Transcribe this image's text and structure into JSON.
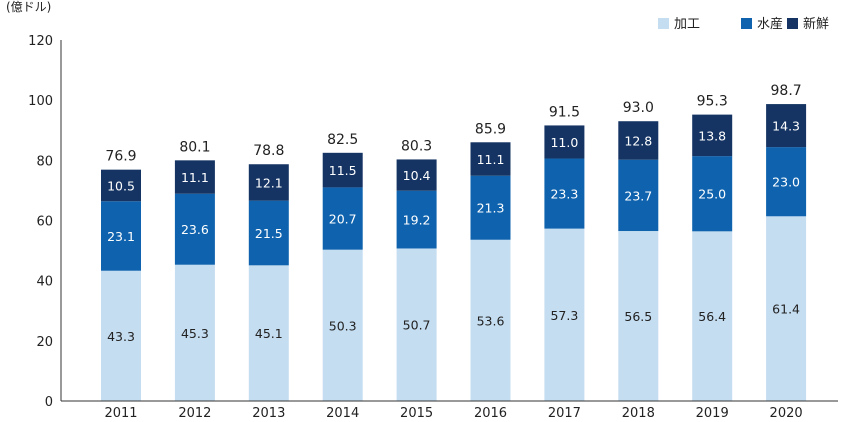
{
  "chart_data": {
    "type": "bar",
    "stacked": true,
    "unit_label": "(億ドル)",
    "categories": [
      "2011",
      "2012",
      "2013",
      "2014",
      "2015",
      "2016",
      "2017",
      "2018",
      "2019",
      "2020"
    ],
    "series": [
      {
        "name": "加工",
        "color": "#c5ddf1",
        "label_color": "#222222",
        "values": [
          43.3,
          45.3,
          45.1,
          50.3,
          50.7,
          53.6,
          57.3,
          56.5,
          56.4,
          61.4
        ]
      },
      {
        "name": "水産",
        "color": "#0f63ae",
        "label_color": "#ffffff",
        "values": [
          23.1,
          23.6,
          21.5,
          20.7,
          19.2,
          21.3,
          23.3,
          23.7,
          25.0,
          23.0
        ]
      },
      {
        "name": "新鮮",
        "color": "#153463",
        "label_color": "#ffffff",
        "values": [
          10.5,
          11.1,
          12.1,
          11.5,
          10.4,
          11.1,
          11.0,
          12.8,
          13.8,
          14.3
        ]
      }
    ],
    "totals": [
      "76.9",
      "80.1",
      "78.8",
      "82.5",
      "80.3",
      "85.9",
      "91.5",
      "93.0",
      "95.3",
      "98.7"
    ],
    "highlight_total_color": "#1f64ad",
    "ylim": [
      0,
      120
    ],
    "yticks": [
      0,
      20,
      40,
      60,
      80,
      100,
      120
    ],
    "legend_position": "top-right",
    "grid": false
  }
}
